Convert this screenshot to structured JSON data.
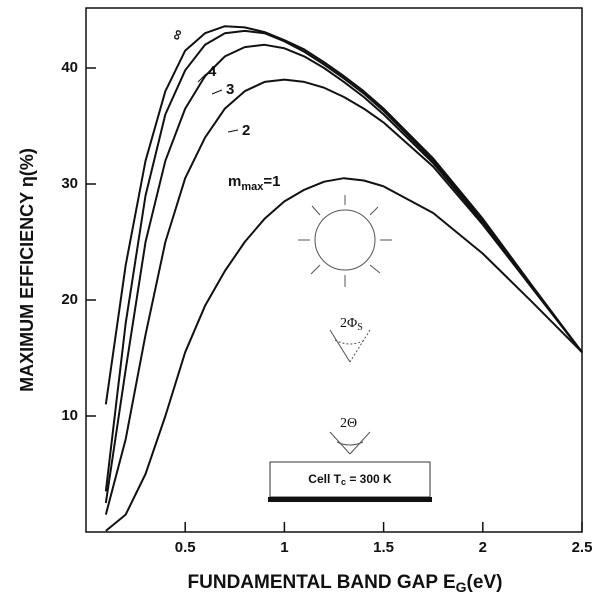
{
  "chart_data": {
    "type": "line",
    "x_label": "FUNDAMENTAL BAND GAP E",
    "x_label_sub": "G",
    "x_label_unit": "(eV)",
    "y_label": "MAXIMUM EFFICIENCY η(%)",
    "x": [
      0.1,
      0.2,
      0.3,
      0.4,
      0.5,
      0.6,
      0.7,
      0.8,
      0.9,
      1.0,
      1.1,
      1.2,
      1.3,
      1.4,
      1.5,
      1.75,
      2.0,
      2.25,
      2.5
    ],
    "series": [
      {
        "name": "∞",
        "color": "#111111",
        "values": [
          11,
          23,
          32,
          38,
          41.5,
          43,
          43.6,
          43.5,
          43.1,
          42.4,
          41.6,
          40.5,
          39.3,
          38,
          36.5,
          32.2,
          27,
          21.2,
          15.5
        ]
      },
      {
        "name": "4",
        "color": "#111111",
        "values": [
          3.5,
          18,
          29,
          36,
          39.8,
          42,
          43,
          43.2,
          43,
          42.3,
          41.4,
          40.3,
          39.1,
          37.8,
          36.3,
          32,
          26.9,
          21.1,
          15.5
        ]
      },
      {
        "name": "3",
        "color": "#111111",
        "values": [
          2.5,
          14,
          25,
          32,
          36.5,
          39.3,
          41,
          41.8,
          42,
          41.7,
          41,
          40,
          38.8,
          37.5,
          36,
          31.8,
          26.7,
          21,
          15.5
        ]
      },
      {
        "name": "2",
        "color": "#111111",
        "values": [
          1.5,
          8,
          17,
          25,
          30.5,
          34,
          36.5,
          38,
          38.8,
          39,
          38.8,
          38.3,
          37.5,
          36.5,
          35.3,
          31.5,
          26.5,
          21,
          15.5
        ]
      },
      {
        "name": "1",
        "color": "#111111",
        "values": [
          0.1,
          1.5,
          5,
          10,
          15.5,
          19.5,
          22.5,
          25,
          27,
          28.5,
          29.5,
          30.2,
          30.5,
          30.3,
          29.8,
          27.5,
          24,
          19.8,
          15.5
        ]
      }
    ],
    "m_label": "m",
    "m_sub": "max",
    "m_eq": "=",
    "sun_angle": "2Φ",
    "sun_angle_sub": "S",
    "cell_angle": "2Θ",
    "cell_label": "Cell T",
    "cell_label_sub": "c",
    "cell_label_rest": " = 300 K",
    "xlim": [
      0,
      2.5
    ],
    "xticks": [
      0.5,
      1.0,
      1.5,
      2.0,
      2.5
    ],
    "ylim": [
      0,
      45
    ],
    "yticks": [
      10,
      20,
      30,
      40
    ]
  }
}
